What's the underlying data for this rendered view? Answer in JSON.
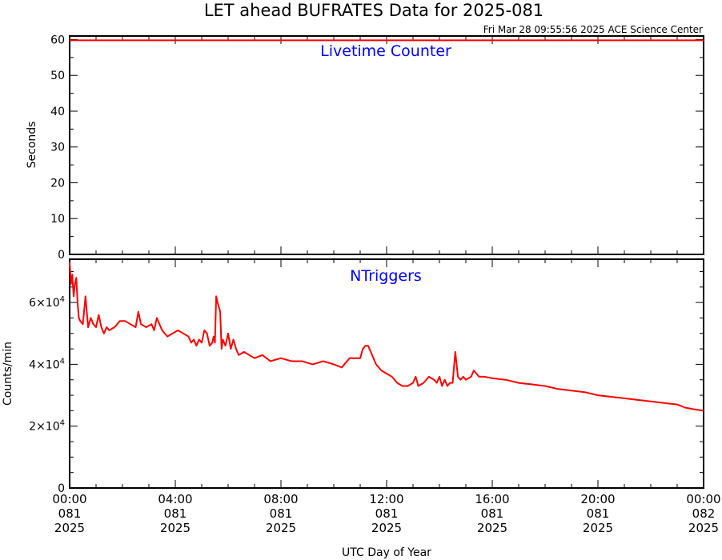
{
  "page": {
    "title": "LET ahead BUFRATES Data for 2025-081",
    "timestamp": "Fri Mar 28 09:55:56 2025 ACE Science Center",
    "xlabel": "UTC Day of Year"
  },
  "chart_data": [
    {
      "type": "line",
      "title": "Livetime Counter",
      "ylabel": "Seconds",
      "ylim": [
        0,
        61
      ],
      "yticks": [
        {
          "value": 0,
          "label": "0"
        },
        {
          "value": 10,
          "label": "10"
        },
        {
          "value": 20,
          "label": "20"
        },
        {
          "value": 30,
          "label": "30"
        },
        {
          "value": 40,
          "label": "40"
        },
        {
          "value": 50,
          "label": "50"
        },
        {
          "value": 60,
          "label": "60"
        }
      ],
      "xlim": [
        0,
        24
      ],
      "xticks": [
        {
          "value": 0,
          "l1": "00:00",
          "l2": "081",
          "l3": "2025"
        },
        {
          "value": 4,
          "l1": "04:00",
          "l2": "081",
          "l3": "2025"
        },
        {
          "value": 8,
          "l1": "08:00",
          "l2": "081",
          "l3": "2025"
        },
        {
          "value": 12,
          "l1": "12:00",
          "l2": "081",
          "l3": "2025"
        },
        {
          "value": 16,
          "l1": "16:00",
          "l2": "081",
          "l3": "2025"
        },
        {
          "value": 20,
          "l1": "20:00",
          "l2": "081",
          "l3": "2025"
        },
        {
          "value": 24,
          "l1": "00:00",
          "l2": "082",
          "l3": "2025"
        }
      ],
      "series": [
        {
          "color": "#ff0000",
          "x": [
            0,
            24
          ],
          "y": [
            59.8,
            59.8
          ]
        }
      ]
    },
    {
      "type": "line",
      "title": "NTriggers",
      "ylabel": "Counts/min",
      "ylim": [
        0,
        74000
      ],
      "yticks": [
        {
          "value": 0,
          "label": "0",
          "mant": "",
          "exp": ""
        },
        {
          "value": 20000,
          "label": "",
          "mant": "2×10",
          "exp": "4"
        },
        {
          "value": 40000,
          "label": "",
          "mant": "4×10",
          "exp": "4"
        },
        {
          "value": 60000,
          "label": "",
          "mant": "6×10",
          "exp": "4"
        }
      ],
      "xlim": [
        0,
        24
      ],
      "series": [
        {
          "color": "#ff0000",
          "x": [
            0,
            0.05,
            0.1,
            0.15,
            0.2,
            0.25,
            0.3,
            0.35,
            0.4,
            0.5,
            0.6,
            0.7,
            0.8,
            0.9,
            1.0,
            1.1,
            1.2,
            1.3,
            1.4,
            1.5,
            1.7,
            1.9,
            2.1,
            2.3,
            2.5,
            2.6,
            2.7,
            2.9,
            3.1,
            3.2,
            3.3,
            3.5,
            3.7,
            3.9,
            4.1,
            4.3,
            4.5,
            4.6,
            4.7,
            4.8,
            4.9,
            5.0,
            5.1,
            5.2,
            5.3,
            5.4,
            5.45,
            5.5,
            5.55,
            5.6,
            5.7,
            5.75,
            5.8,
            5.9,
            6.0,
            6.1,
            6.2,
            6.3,
            6.4,
            6.6,
            6.8,
            7.0,
            7.3,
            7.6,
            8.0,
            8.4,
            8.8,
            9.2,
            9.6,
            10.0,
            10.3,
            10.6,
            10.9,
            11.0,
            11.1,
            11.2,
            11.3,
            11.4,
            11.6,
            11.8,
            12.0,
            12.2,
            12.4,
            12.6,
            12.8,
            13.0,
            13.1,
            13.2,
            13.4,
            13.6,
            13.8,
            13.9,
            14.0,
            14.1,
            14.2,
            14.3,
            14.4,
            14.5,
            14.6,
            14.7,
            14.8,
            14.9,
            15.0,
            15.2,
            15.3,
            15.4,
            15.5,
            15.7,
            16.0,
            16.5,
            17.0,
            17.5,
            18.0,
            18.5,
            19.0,
            19.5,
            20.0,
            20.5,
            21.0,
            21.5,
            22.0,
            22.5,
            23.0,
            23.3,
            23.6,
            24.0
          ],
          "y": [
            73000,
            66000,
            69000,
            62000,
            66000,
            68000,
            60000,
            55000,
            54000,
            53000,
            62000,
            52000,
            55000,
            53000,
            52000,
            56000,
            52000,
            50000,
            52000,
            51000,
            52000,
            54000,
            54000,
            53000,
            52000,
            57000,
            53000,
            52000,
            53000,
            51000,
            55000,
            51000,
            49000,
            50000,
            51000,
            50000,
            49000,
            47000,
            48000,
            46000,
            48000,
            47000,
            51000,
            50000,
            46000,
            47000,
            49000,
            47000,
            62000,
            60000,
            57000,
            45000,
            48000,
            46000,
            50000,
            45000,
            48000,
            45000,
            43000,
            44000,
            43000,
            42000,
            43000,
            41000,
            42000,
            41000,
            41000,
            40000,
            41000,
            40000,
            39000,
            42000,
            42000,
            42000,
            45000,
            46000,
            46000,
            44000,
            40000,
            38000,
            37000,
            36000,
            34000,
            33000,
            33000,
            34000,
            36000,
            33000,
            34000,
            36000,
            35000,
            34000,
            36000,
            33000,
            35000,
            33000,
            34000,
            34000,
            44000,
            36000,
            35000,
            36000,
            35000,
            36000,
            38000,
            37000,
            36000,
            36000,
            35500,
            35000,
            34000,
            33500,
            33000,
            32000,
            31500,
            31000,
            30000,
            29500,
            29000,
            28500,
            28000,
            27500,
            27000,
            26000,
            25500,
            25000
          ]
        }
      ]
    }
  ]
}
